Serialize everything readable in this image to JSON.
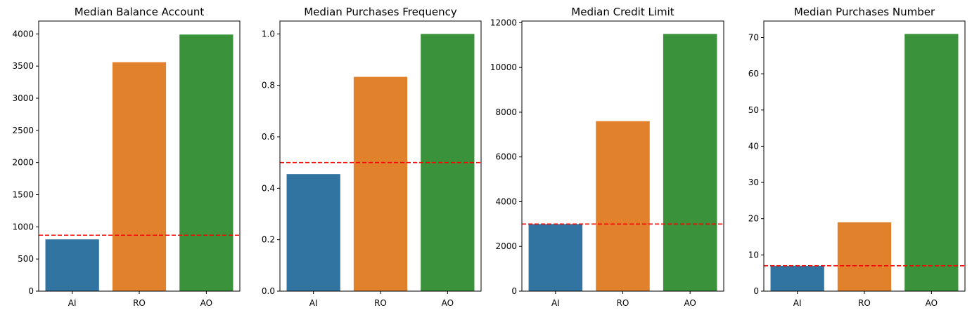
{
  "colors": {
    "reference_line": "#ff0000",
    "categories": [
      "#3274a1",
      "#e1812c",
      "#3a923a"
    ]
  },
  "chart_data": [
    {
      "type": "bar",
      "title": "Median Balance Account",
      "categories": [
        "AI",
        "RO",
        "AO"
      ],
      "values": [
        805,
        3560,
        3990
      ],
      "reference_line": 870,
      "ylim": [
        0,
        4200
      ],
      "yticks": [
        0,
        500,
        1000,
        1500,
        2000,
        2500,
        3000,
        3500,
        4000
      ],
      "ytick_labels": [
        "0",
        "500",
        "1000",
        "1500",
        "2000",
        "2500",
        "3000",
        "3500",
        "4000"
      ],
      "xlabel": "",
      "ylabel": ""
    },
    {
      "type": "bar",
      "title": "Median Purchases Frequency",
      "categories": [
        "AI",
        "RO",
        "AO"
      ],
      "values": [
        0.455,
        0.833,
        1.0
      ],
      "reference_line": 0.5,
      "ylim": [
        0,
        1.05
      ],
      "yticks": [
        0.0,
        0.2,
        0.4,
        0.6,
        0.8,
        1.0
      ],
      "ytick_labels": [
        "0.0",
        "0.2",
        "0.4",
        "0.6",
        "0.8",
        "1.0"
      ],
      "xlabel": "",
      "ylabel": ""
    },
    {
      "type": "bar",
      "title": "Median Credit Limit",
      "categories": [
        "AI",
        "RO",
        "AO"
      ],
      "values": [
        3000,
        7600,
        11500
      ],
      "reference_line": 3000,
      "ylim": [
        0,
        12075
      ],
      "yticks": [
        0,
        2000,
        4000,
        6000,
        8000,
        10000,
        12000
      ],
      "ytick_labels": [
        "0",
        "2000",
        "4000",
        "6000",
        "8000",
        "10000",
        "12000"
      ],
      "xlabel": "",
      "ylabel": ""
    },
    {
      "type": "bar",
      "title": "Median Purchases Number",
      "categories": [
        "AI",
        "RO",
        "AO"
      ],
      "values": [
        7,
        19,
        71
      ],
      "reference_line": 7,
      "ylim": [
        0,
        74.55
      ],
      "yticks": [
        0,
        10,
        20,
        30,
        40,
        50,
        60,
        70
      ],
      "ytick_labels": [
        "0",
        "10",
        "20",
        "30",
        "40",
        "50",
        "60",
        "70"
      ],
      "xlabel": "",
      "ylabel": ""
    }
  ]
}
